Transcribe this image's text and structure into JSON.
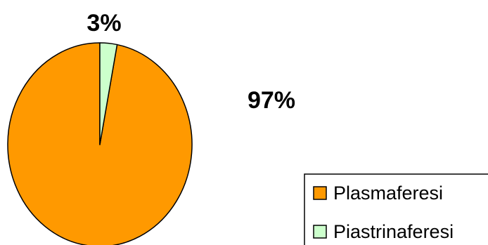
{
  "chart_data": {
    "type": "pie",
    "slices": [
      {
        "label": "Plasmaferesi",
        "value": 97,
        "value_label": "97%",
        "color": "#FF9900"
      },
      {
        "label": "Piastrinaferesi",
        "value": 3,
        "value_label": "3%",
        "color": "#CCFFCC"
      }
    ],
    "legend_position": "bottom-right"
  }
}
